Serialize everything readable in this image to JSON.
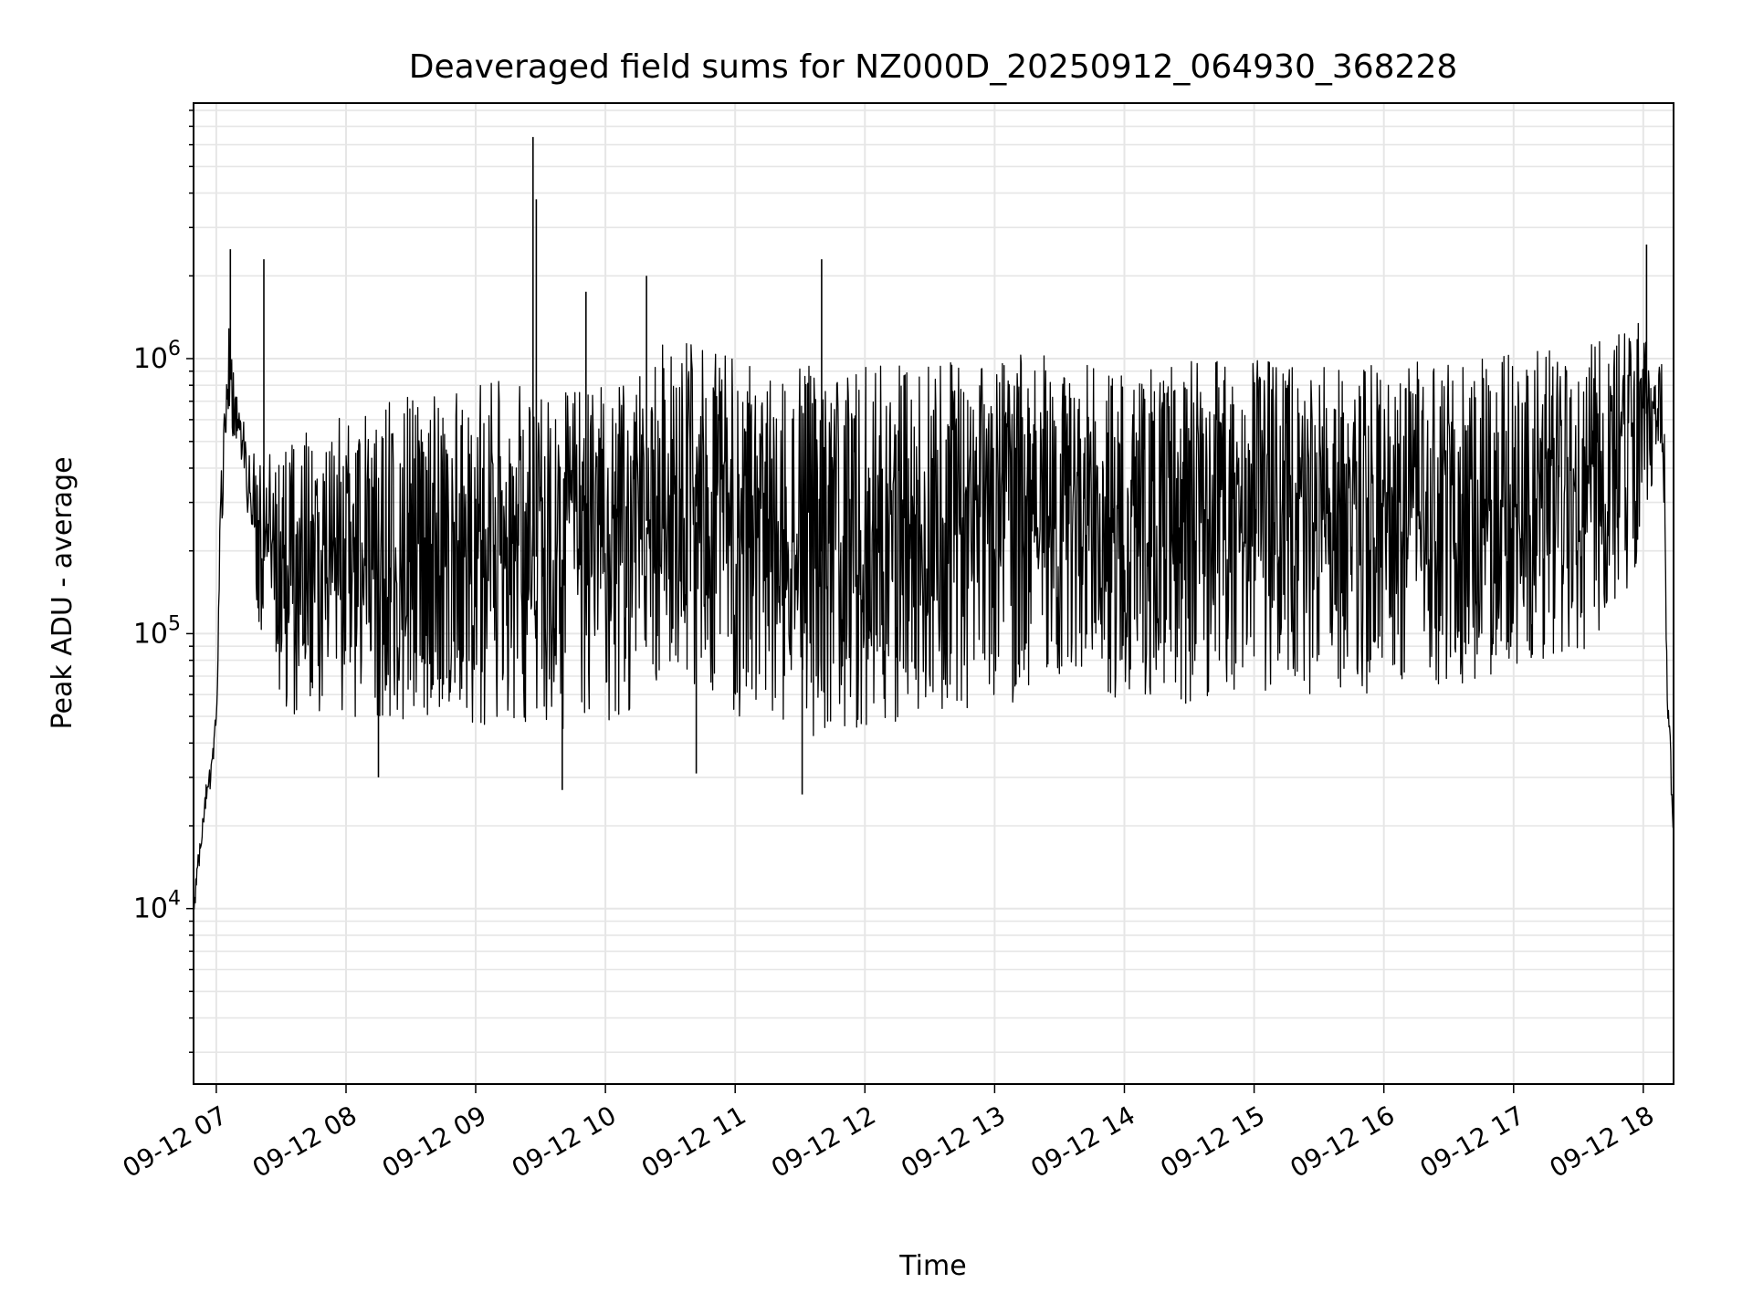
{
  "chart_data": {
    "type": "line",
    "title": "Deaveraged field sums for NZ000D_20250912_064930_368228",
    "xlabel": "Time",
    "ylabel": "Peak ADU - average",
    "yscale": "log",
    "ylim": [
      2300,
      8500000
    ],
    "xlim": [
      "2025-09-12 06:49:30",
      "2025-09-12 18:14:00"
    ],
    "grid": true,
    "legend": "none",
    "line_color": "#000000",
    "grid_color": "#e6e6e6",
    "x_ticks": [
      "09-12 07",
      "09-12 08",
      "09-12 09",
      "09-12 10",
      "09-12 11",
      "09-12 12",
      "09-12 13",
      "09-12 14",
      "09-12 15",
      "09-12 16",
      "09-12 17",
      "09-12 18"
    ],
    "y_ticks": [
      {
        "value": 10000,
        "base": "10",
        "exp": "4"
      },
      {
        "value": 100000,
        "base": "10",
        "exp": "5"
      },
      {
        "value": 1000000,
        "base": "10",
        "exp": "6"
      }
    ],
    "series": [
      {
        "x": [
          "2025-09-12 06:49:30",
          "2025-09-12 06:52:00",
          "2025-09-12 06:55:00",
          "2025-09-12 06:58:00",
          "2025-09-12 07:00:00",
          "2025-09-12 07:02:00",
          "2025-09-12 07:04:00",
          "2025-09-12 07:05:00",
          "2025-09-12 07:06:00",
          "2025-09-12 07:07:00",
          "2025-09-12 07:08:00",
          "2025-09-12 07:10:00",
          "2025-09-12 07:12:00",
          "2025-09-12 07:14:00",
          "2025-09-12 07:16:00",
          "2025-09-12 07:18:00",
          "2025-09-12 07:20:00",
          "2025-09-12 07:22:00",
          "2025-09-12 07:24:00",
          "2025-09-12 07:27:00",
          "2025-09-12 07:30:00",
          "2025-09-12 07:33:00",
          "2025-09-12 07:36:00",
          "2025-09-12 07:40:00",
          "2025-09-12 07:45:00",
          "2025-09-12 07:50:00",
          "2025-09-12 08:00:00",
          "2025-09-12 08:15:00",
          "2025-09-12 08:30:00",
          "2025-09-12 08:45:00",
          "2025-09-12 09:00:00",
          "2025-09-12 09:15:00",
          "2025-09-12 09:30:00",
          "2025-09-12 09:45:00",
          "2025-09-12 10:00:00",
          "2025-09-12 10:15:00",
          "2025-09-12 10:20:00",
          "2025-09-12 10:30:00",
          "2025-09-12 10:45:00",
          "2025-09-12 11:00:00",
          "2025-09-12 11:30:00",
          "2025-09-12 12:00:00",
          "2025-09-12 12:30:00",
          "2025-09-12 13:00:00",
          "2025-09-12 13:30:00",
          "2025-09-12 14:00:00",
          "2025-09-12 14:30:00",
          "2025-09-12 15:00:00",
          "2025-09-12 15:30:00",
          "2025-09-12 16:00:00",
          "2025-09-12 16:30:00",
          "2025-09-12 17:00:00",
          "2025-09-12 17:30:00",
          "2025-09-12 17:45:00",
          "2025-09-12 17:55:00",
          "2025-09-12 18:00:00",
          "2025-09-12 18:03:00",
          "2025-09-12 18:05:00",
          "2025-09-12 18:07:00",
          "2025-09-12 18:09:00",
          "2025-09-12 18:10:00",
          "2025-09-12 18:11:00",
          "2025-09-12 18:12:00",
          "2025-09-12 18:13:00",
          "2025-09-12 18:14:00"
        ],
        "y_low": [
          9000,
          14000,
          21000,
          30000,
          45000,
          150000,
          500000,
          550000,
          600000,
          550000,
          500000,
          450000,
          380000,
          300000,
          200000,
          130000,
          90000,
          75000,
          65000,
          60000,
          55000,
          52000,
          50000,
          50000,
          50000,
          50000,
          48000,
          45000,
          45000,
          45000,
          45000,
          45000,
          45000,
          45000,
          48000,
          52000,
          60000,
          70000,
          55000,
          50000,
          40000,
          45000,
          50000,
          55000,
          60000,
          55000,
          55000,
          60000,
          60000,
          60000,
          65000,
          70000,
          80000,
          100000,
          150000,
          250000,
          300000,
          400000,
          500000,
          450000,
          200000,
          50000,
          40000,
          25000,
          17000
        ],
        "y_high": [
          11000,
          17000,
          28000,
          35000,
          55000,
          350000,
          700000,
          1000000,
          1500000,
          1200000,
          900000,
          800000,
          700000,
          600000,
          500000,
          450000,
          450000,
          450000,
          450000,
          500000,
          550000,
          550000,
          550000,
          600000,
          600000,
          600000,
          650000,
          700000,
          750000,
          750000,
          800000,
          850000,
          800000,
          750000,
          800000,
          900000,
          1200000,
          1200000,
          1100000,
          1000000,
          950000,
          950000,
          1000000,
          1050000,
          1050000,
          1000000,
          1000000,
          1000000,
          950000,
          950000,
          1000000,
          1050000,
          1100000,
          1200000,
          1300000,
          1500000,
          1400000,
          1200000,
          1100000,
          1000000,
          600000,
          80000,
          60000,
          30000,
          20000
        ],
        "spikes": [
          {
            "x": "2025-09-12 07:06:30",
            "y": 2500000
          },
          {
            "x": "2025-09-12 07:22:00",
            "y": 2300000
          },
          {
            "x": "2025-09-12 09:26:30",
            "y": 6400000
          },
          {
            "x": "2025-09-12 09:28:00",
            "y": 3800000
          },
          {
            "x": "2025-09-12 09:51:00",
            "y": 1750000
          },
          {
            "x": "2025-09-12 10:19:00",
            "y": 2000000
          },
          {
            "x": "2025-09-12 11:40:00",
            "y": 2300000
          },
          {
            "x": "2025-09-12 18:01:30",
            "y": 2600000
          },
          {
            "x": "2025-09-12 09:40:00",
            "y": 27000
          },
          {
            "x": "2025-09-12 11:31:00",
            "y": 26000
          },
          {
            "x": "2025-09-12 08:15:00",
            "y": 30000
          },
          {
            "x": "2025-09-12 10:42:00",
            "y": 31000
          }
        ]
      }
    ]
  }
}
